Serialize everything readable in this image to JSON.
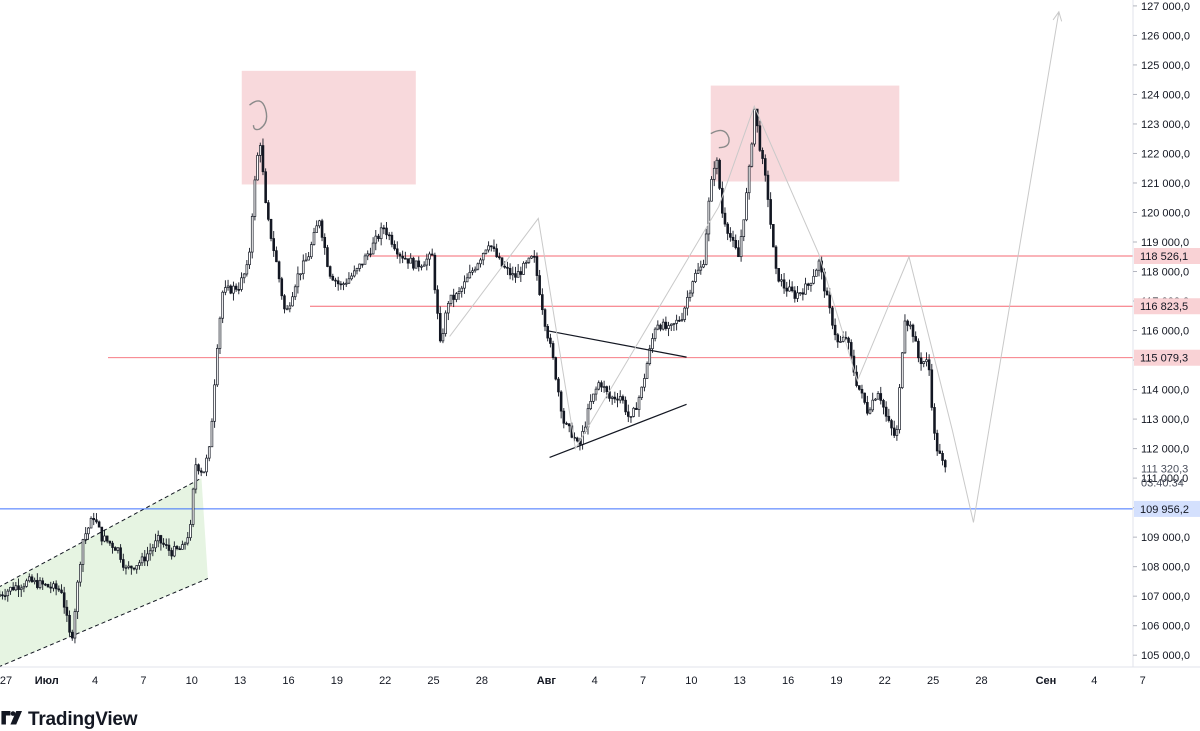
{
  "brand": {
    "name": "TradingView"
  },
  "chart_data": {
    "type": "candlestick",
    "y_axis": {
      "range": [
        104600,
        127200
      ],
      "ticks": [
        {
          "value": 105000,
          "label": "105 000,0"
        },
        {
          "value": 106000,
          "label": "106 000,0"
        },
        {
          "value": 107000,
          "label": "107 000,0"
        },
        {
          "value": 108000,
          "label": "108 000,0"
        },
        {
          "value": 109000,
          "label": "109 000,0"
        },
        {
          "value": 110000,
          "label": "110 000,0"
        },
        {
          "value": 111000,
          "label": "111 000,0"
        },
        {
          "value": 112000,
          "label": "112 000,0"
        },
        {
          "value": 113000,
          "label": "113 000,0"
        },
        {
          "value": 114000,
          "label": "114 000,0"
        },
        {
          "value": 115000,
          "label": "115 000,0"
        },
        {
          "value": 116000,
          "label": "116 000,0"
        },
        {
          "value": 117000,
          "label": "117 000,0"
        },
        {
          "value": 118000,
          "label": "118 000,0"
        },
        {
          "value": 119000,
          "label": "119 000,0"
        },
        {
          "value": 120000,
          "label": "120 000,0"
        },
        {
          "value": 121000,
          "label": "121 000,0"
        },
        {
          "value": 122000,
          "label": "122 000,0"
        },
        {
          "value": 123000,
          "label": "123 000,0"
        },
        {
          "value": 124000,
          "label": "124 000,0"
        },
        {
          "value": 125000,
          "label": "125 000,0"
        },
        {
          "value": 126000,
          "label": "126 000,0"
        },
        {
          "value": 127000,
          "label": "127 000,0"
        }
      ]
    },
    "x_axis": {
      "range": [
        -2.9,
        67.4
      ],
      "ticks": [
        {
          "day": -3,
          "label": "27"
        },
        {
          "day": 0,
          "label": "Июл",
          "bold": true
        },
        {
          "day": 3,
          "label": "4"
        },
        {
          "day": 6,
          "label": "7"
        },
        {
          "day": 9,
          "label": "10"
        },
        {
          "day": 12,
          "label": "13"
        },
        {
          "day": 15,
          "label": "16"
        },
        {
          "day": 18,
          "label": "19"
        },
        {
          "day": 21,
          "label": "22"
        },
        {
          "day": 24,
          "label": "25"
        },
        {
          "day": 27,
          "label": "28"
        },
        {
          "day": 31,
          "label": "Авг",
          "bold": true
        },
        {
          "day": 34,
          "label": "4"
        },
        {
          "day": 37,
          "label": "7"
        },
        {
          "day": 40,
          "label": "10"
        },
        {
          "day": 43,
          "label": "13"
        },
        {
          "day": 46,
          "label": "16"
        },
        {
          "day": 49,
          "label": "19"
        },
        {
          "day": 52,
          "label": "22"
        },
        {
          "day": 55,
          "label": "25"
        },
        {
          "day": 58,
          "label": "28"
        },
        {
          "day": 62,
          "label": "Сен",
          "bold": true
        },
        {
          "day": 65,
          "label": "4"
        },
        {
          "day": 68,
          "label": "7"
        }
      ]
    },
    "price_anchors": [
      [
        -3.0,
        107000
      ],
      [
        -2.0,
        107300
      ],
      [
        -1.0,
        107500
      ],
      [
        1.0,
        107200
      ],
      [
        1.6,
        105400
      ],
      [
        2.3,
        108900
      ],
      [
        3.0,
        109700
      ],
      [
        3.5,
        109000
      ],
      [
        4.5,
        108600
      ],
      [
        5.0,
        107900
      ],
      [
        6.0,
        108200
      ],
      [
        7.0,
        108900
      ],
      [
        7.8,
        108500
      ],
      [
        8.5,
        108600
      ],
      [
        9.0,
        109300
      ],
      [
        9.3,
        111500
      ],
      [
        9.8,
        111200
      ],
      [
        10.2,
        112000
      ],
      [
        10.7,
        115800
      ],
      [
        11.0,
        117300
      ],
      [
        12.0,
        117500
      ],
      [
        12.6,
        118200
      ],
      [
        12.9,
        120500
      ],
      [
        13.3,
        122600
      ],
      [
        13.7,
        120000
      ],
      [
        14.3,
        118400
      ],
      [
        14.9,
        116500
      ],
      [
        15.6,
        117800
      ],
      [
        16.3,
        118500
      ],
      [
        17.0,
        119800
      ],
      [
        17.6,
        118000
      ],
      [
        18.3,
        117500
      ],
      [
        19.3,
        118000
      ],
      [
        20.0,
        118600
      ],
      [
        21.0,
        119500
      ],
      [
        22.0,
        118600
      ],
      [
        23.0,
        118200
      ],
      [
        24.0,
        118500
      ],
      [
        24.5,
        115500
      ],
      [
        25.0,
        117000
      ],
      [
        25.6,
        117200
      ],
      [
        27.0,
        118500
      ],
      [
        27.5,
        119000
      ],
      [
        28.3,
        118200
      ],
      [
        29.1,
        117800
      ],
      [
        29.8,
        118200
      ],
      [
        30.3,
        118500
      ],
      [
        31.0,
        116300
      ],
      [
        31.5,
        115000
      ],
      [
        32.2,
        112800
      ],
      [
        32.7,
        112500
      ],
      [
        33.1,
        112000
      ],
      [
        33.8,
        113500
      ],
      [
        34.4,
        114300
      ],
      [
        35.0,
        113700
      ],
      [
        35.7,
        113800
      ],
      [
        36.3,
        112900
      ],
      [
        37.0,
        114000
      ],
      [
        37.3,
        114800
      ],
      [
        37.9,
        116300
      ],
      [
        38.7,
        116000
      ],
      [
        39.5,
        116500
      ],
      [
        40.2,
        117800
      ],
      [
        40.8,
        118200
      ],
      [
        41.2,
        120500
      ],
      [
        41.6,
        122000
      ],
      [
        42.0,
        120000
      ],
      [
        42.6,
        119000
      ],
      [
        43.0,
        118500
      ],
      [
        43.6,
        121000
      ],
      [
        44.0,
        123500
      ],
      [
        44.4,
        122000
      ],
      [
        44.8,
        120700
      ],
      [
        45.3,
        118000
      ],
      [
        45.8,
        117500
      ],
      [
        46.5,
        117200
      ],
      [
        47.3,
        117500
      ],
      [
        48.0,
        118300
      ],
      [
        48.6,
        116800
      ],
      [
        49.2,
        115500
      ],
      [
        49.7,
        115800
      ],
      [
        50.3,
        114300
      ],
      [
        51.0,
        113300
      ],
      [
        51.7,
        114000
      ],
      [
        52.2,
        113000
      ],
      [
        52.8,
        112300
      ],
      [
        53.3,
        116500
      ],
      [
        53.8,
        116000
      ],
      [
        54.2,
        115000
      ],
      [
        54.8,
        114900
      ],
      [
        55.2,
        112200
      ],
      [
        55.8,
        111300
      ]
    ],
    "annotations": {
      "horizontal_levels": [
        {
          "value": 118526.1,
          "label": "118 526,1",
          "color": "#f23645",
          "style": "red"
        },
        {
          "value": 116823.5,
          "label": "116 823,5",
          "color": "#f23645",
          "style": "red"
        },
        {
          "value": 115079.3,
          "label": "115 079,3",
          "color": "#f23645",
          "style": "red"
        },
        {
          "value": 109956.2,
          "label": "109 956,2",
          "color": "#2962ff",
          "style": "blue"
        }
      ],
      "last_price": {
        "value": 111320.3,
        "label": "111 320,3",
        "countdown": "03:40:34"
      },
      "supply_zones": [
        {
          "day_from": 12.1,
          "day_to": 22.9,
          "price_from": 120950,
          "price_to": 124800
        },
        {
          "day_from": 41.2,
          "day_to": 52.9,
          "price_from": 121050,
          "price_to": 124300
        }
      ],
      "ascending_channel": {
        "upper": [
          [
            -3.0,
            107300
          ],
          [
            9.6,
            111000
          ]
        ],
        "lower": [
          [
            -3.0,
            104600
          ],
          [
            10.0,
            107600
          ]
        ]
      },
      "triangle": {
        "upper": [
          [
            31.0,
            116000
          ],
          [
            39.7,
            115100
          ]
        ],
        "lower": [
          [
            31.2,
            111700
          ],
          [
            39.7,
            113500
          ]
        ]
      },
      "projection_path": [
        [
          25.0,
          115800
        ],
        [
          30.5,
          119800
        ],
        [
          32.8,
          112000
        ],
        [
          41.7,
          120200
        ],
        [
          43.9,
          123600
        ],
        [
          47.9,
          118600
        ],
        [
          50.3,
          114300
        ],
        [
          53.5,
          118500
        ],
        [
          56.2,
          112600
        ],
        [
          57.5,
          109500
        ],
        [
          62.8,
          126800
        ]
      ],
      "colors": {
        "zone_fill": "#f8d9dc",
        "channel_fill": "#e6f4e2",
        "bull_candle": "#ffffff",
        "bear_candle": "#131722",
        "projection": "#c9c9c9",
        "red_line": "#f23645",
        "blue_line": "#2962ff",
        "label_bg_red": "#f9d2d5",
        "label_bg_blue": "#d4e0fd",
        "axis_text": "#131722"
      }
    }
  }
}
